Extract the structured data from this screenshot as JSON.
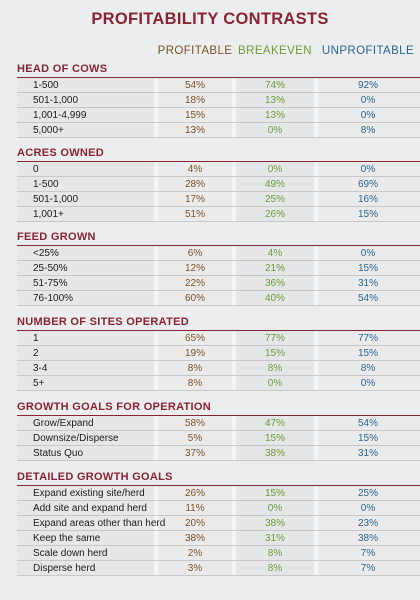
{
  "title": "PROFITABILITY CONTRASTS",
  "columns": {
    "profitable": "PROFITABLE",
    "breakeven": "BREAKEVEN",
    "unprofitable": "UNPROFITABLE"
  },
  "sections": [
    {
      "title": "HEAD OF COWS",
      "rows": [
        {
          "label": "1-500",
          "profitable": "54%",
          "breakeven": "74%",
          "unprofitable": "92%"
        },
        {
          "label": "501-1,000",
          "profitable": "18%",
          "breakeven": "13%",
          "unprofitable": "0%"
        },
        {
          "label": "1,001-4,999",
          "profitable": "15%",
          "breakeven": "13%",
          "unprofitable": "0%"
        },
        {
          "label": "5,000+",
          "profitable": "13%",
          "breakeven": "0%",
          "unprofitable": "8%"
        }
      ]
    },
    {
      "title": "ACRES OWNED",
      "rows": [
        {
          "label": "0",
          "profitable": "4%",
          "breakeven": "0%",
          "unprofitable": "0%"
        },
        {
          "label": "1-500",
          "profitable": "28%",
          "breakeven": "49%",
          "unprofitable": "69%"
        },
        {
          "label": "501-1,000",
          "profitable": "17%",
          "breakeven": "25%",
          "unprofitable": "16%"
        },
        {
          "label": "1,001+",
          "profitable": "51%",
          "breakeven": "26%",
          "unprofitable": "15%"
        }
      ]
    },
    {
      "title": "FEED GROWN",
      "rows": [
        {
          "label": "<25%",
          "profitable": "6%",
          "breakeven": "4%",
          "unprofitable": "0%"
        },
        {
          "label": "25-50%",
          "profitable": "12%",
          "breakeven": "21%",
          "unprofitable": "15%"
        },
        {
          "label": "51-75%",
          "profitable": "22%",
          "breakeven": "36%",
          "unprofitable": "31%"
        },
        {
          "label": "76-100%",
          "profitable": "60%",
          "breakeven": "40%",
          "unprofitable": "54%"
        }
      ]
    },
    {
      "title": "NUMBER OF SITES OPERATED",
      "rows": [
        {
          "label": "1",
          "profitable": "65%",
          "breakeven": "77%",
          "unprofitable": "77%"
        },
        {
          "label": "2",
          "profitable": "19%",
          "breakeven": "15%",
          "unprofitable": "15%"
        },
        {
          "label": "3-4",
          "profitable": "8%",
          "breakeven": "8%",
          "unprofitable": "8%"
        },
        {
          "label": "5+",
          "profitable": "8%",
          "breakeven": "0%",
          "unprofitable": "0%"
        }
      ]
    },
    {
      "title": "GROWTH GOALS FOR OPERATION",
      "rows": [
        {
          "label": "Grow/Expand",
          "profitable": "58%",
          "breakeven": "47%",
          "unprofitable": "54%"
        },
        {
          "label": "Downsize/Disperse",
          "profitable": "5%",
          "breakeven": "15%",
          "unprofitable": "15%"
        },
        {
          "label": "Status Quo",
          "profitable": "37%",
          "breakeven": "38%",
          "unprofitable": "31%"
        }
      ]
    },
    {
      "title": "DETAILED GROWTH GOALS",
      "rows": [
        {
          "label": "Expand existing site/herd",
          "profitable": "26%",
          "breakeven": "15%",
          "unprofitable": "25%"
        },
        {
          "label": "Add site and expand herd",
          "profitable": "11%",
          "breakeven": "0%",
          "unprofitable": "0%"
        },
        {
          "label": "Expand areas other than herd",
          "profitable": "20%",
          "breakeven": "38%",
          "unprofitable": "23%"
        },
        {
          "label": "Keep the same",
          "profitable": "38%",
          "breakeven": "31%",
          "unprofitable": "38%"
        },
        {
          "label": "Scale down herd",
          "profitable": "2%",
          "breakeven": "8%",
          "unprofitable": "7%"
        },
        {
          "label": "Disperse herd",
          "profitable": "3%",
          "breakeven": "8%",
          "unprofitable": "7%"
        }
      ]
    }
  ]
}
